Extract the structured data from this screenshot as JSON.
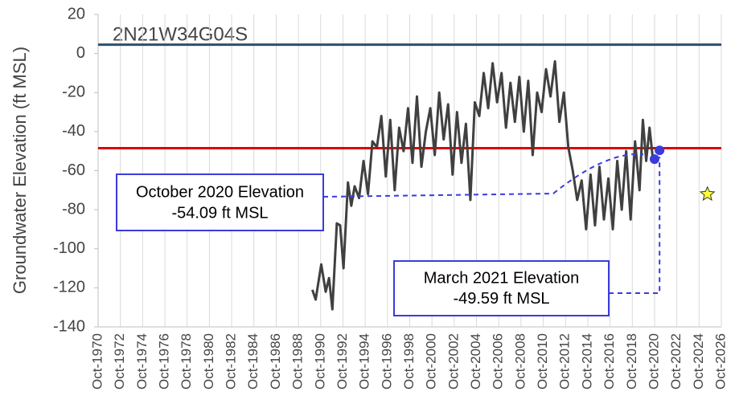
{
  "chart_data": {
    "type": "line",
    "station": "2N21W34G04S",
    "y_label": "Groundwater Elevation (ft MSL)",
    "xlim": [
      1970.75,
      2026.75
    ],
    "xticks": [
      {
        "value": 1970.75,
        "label": "Oct-1970"
      },
      {
        "value": 1972.75,
        "label": "Oct-1972"
      },
      {
        "value": 1974.75,
        "label": "Oct-1974"
      },
      {
        "value": 1976.75,
        "label": "Oct-1976"
      },
      {
        "value": 1978.75,
        "label": "Oct-1978"
      },
      {
        "value": 1980.75,
        "label": "Oct-1980"
      },
      {
        "value": 1982.75,
        "label": "Oct-1982"
      },
      {
        "value": 1984.75,
        "label": "Oct-1984"
      },
      {
        "value": 1986.75,
        "label": "Oct-1986"
      },
      {
        "value": 1988.75,
        "label": "Oct-1988"
      },
      {
        "value": 1990.75,
        "label": "Oct-1990"
      },
      {
        "value": 1992.75,
        "label": "Oct-1992"
      },
      {
        "value": 1994.75,
        "label": "Oct-1994"
      },
      {
        "value": 1996.75,
        "label": "Oct-1996"
      },
      {
        "value": 1998.75,
        "label": "Oct-1998"
      },
      {
        "value": 2000.75,
        "label": "Oct-2000"
      },
      {
        "value": 2002.75,
        "label": "Oct-2002"
      },
      {
        "value": 2004.75,
        "label": "Oct-2004"
      },
      {
        "value": 2006.75,
        "label": "Oct-2006"
      },
      {
        "value": 2008.75,
        "label": "Oct-2008"
      },
      {
        "value": 2010.75,
        "label": "Oct-2010"
      },
      {
        "value": 2012.75,
        "label": "Oct-2012"
      },
      {
        "value": 2014.75,
        "label": "Oct-2014"
      },
      {
        "value": 2016.75,
        "label": "Oct-2016"
      },
      {
        "value": 2018.75,
        "label": "Oct-2018"
      },
      {
        "value": 2020.75,
        "label": "Oct-2020"
      },
      {
        "value": 2022.75,
        "label": "Oct-2022"
      },
      {
        "value": 2024.75,
        "label": "Oct-2024"
      },
      {
        "value": 2026.75,
        "label": "Oct-2026"
      }
    ],
    "ylim": [
      -140,
      20
    ],
    "yticks": [
      20,
      0,
      -20,
      -40,
      -60,
      -80,
      -100,
      -120,
      -140
    ],
    "grid": true,
    "series": [
      {
        "color": "#404040",
        "x": [
          1990.0,
          1990.3,
          1990.8,
          1991.2,
          1991.5,
          1991.8,
          1992.2,
          1992.5,
          1992.8,
          1993.2,
          1993.5,
          1993.8,
          1994.2,
          1994.6,
          1995.0,
          1995.4,
          1995.8,
          1996.2,
          1996.6,
          1997.0,
          1997.4,
          1997.8,
          1998.2,
          1998.6,
          1999.0,
          1999.4,
          1999.8,
          2000.2,
          2000.6,
          2001.0,
          2001.4,
          2001.8,
          2002.2,
          2002.6,
          2003.0,
          2003.4,
          2003.8,
          2004.2,
          2004.6,
          2005.0,
          2005.4,
          2005.8,
          2006.2,
          2006.6,
          2007.0,
          2007.4,
          2007.8,
          2008.2,
          2008.6,
          2009.0,
          2009.4,
          2009.8,
          2010.2,
          2010.6,
          2011.0,
          2011.4,
          2011.8,
          2012.2,
          2012.6,
          2013.0,
          2013.4,
          2013.8,
          2014.2,
          2014.6,
          2015.0,
          2015.4,
          2015.8,
          2016.2,
          2016.6,
          2017.0,
          2017.4,
          2017.8,
          2018.2,
          2018.6,
          2019.0,
          2019.4,
          2019.7,
          2020.0,
          2020.3,
          2020.6
        ],
        "values": [
          -121,
          -126,
          -108,
          -122,
          -115,
          -131,
          -87,
          -88,
          -110,
          -66,
          -78,
          -68,
          -74,
          -55,
          -72,
          -45,
          -48,
          -32,
          -63,
          -34,
          -70,
          -38,
          -50,
          -28,
          -56,
          -22,
          -58,
          -40,
          -28,
          -52,
          -20,
          -44,
          -26,
          -62,
          -30,
          -56,
          -36,
          -75,
          -25,
          -32,
          -10,
          -28,
          -5,
          -25,
          -10,
          -38,
          -15,
          -35,
          -12,
          -40,
          -14,
          -52,
          -20,
          -30,
          -8,
          -22,
          -4,
          -35,
          -20,
          -48,
          -60,
          -75,
          -65,
          -90,
          -62,
          -88,
          -58,
          -85,
          -64,
          -90,
          -55,
          -80,
          -50,
          -85,
          -45,
          -70,
          -34,
          -55,
          -38,
          -54.09
        ]
      }
    ],
    "ref_lines": [
      {
        "value": 4.5,
        "color": "#2e4e6e"
      },
      {
        "value": -48.5,
        "color": "#e00000"
      }
    ],
    "highlights": [
      {
        "name": "October 2020 Elevation",
        "x": 2020.75,
        "value": -54.09,
        "value_label": "-54.09 ft MSL",
        "color": "#3b3bdc"
      },
      {
        "name": "March 2021 Elevation",
        "x": 2021.2,
        "value": -49.59,
        "value_label": "-49.59 ft MSL",
        "color": "#3b3bdc"
      }
    ],
    "star": {
      "x": 2025.5,
      "value": -72,
      "color": "#ffff33"
    }
  }
}
